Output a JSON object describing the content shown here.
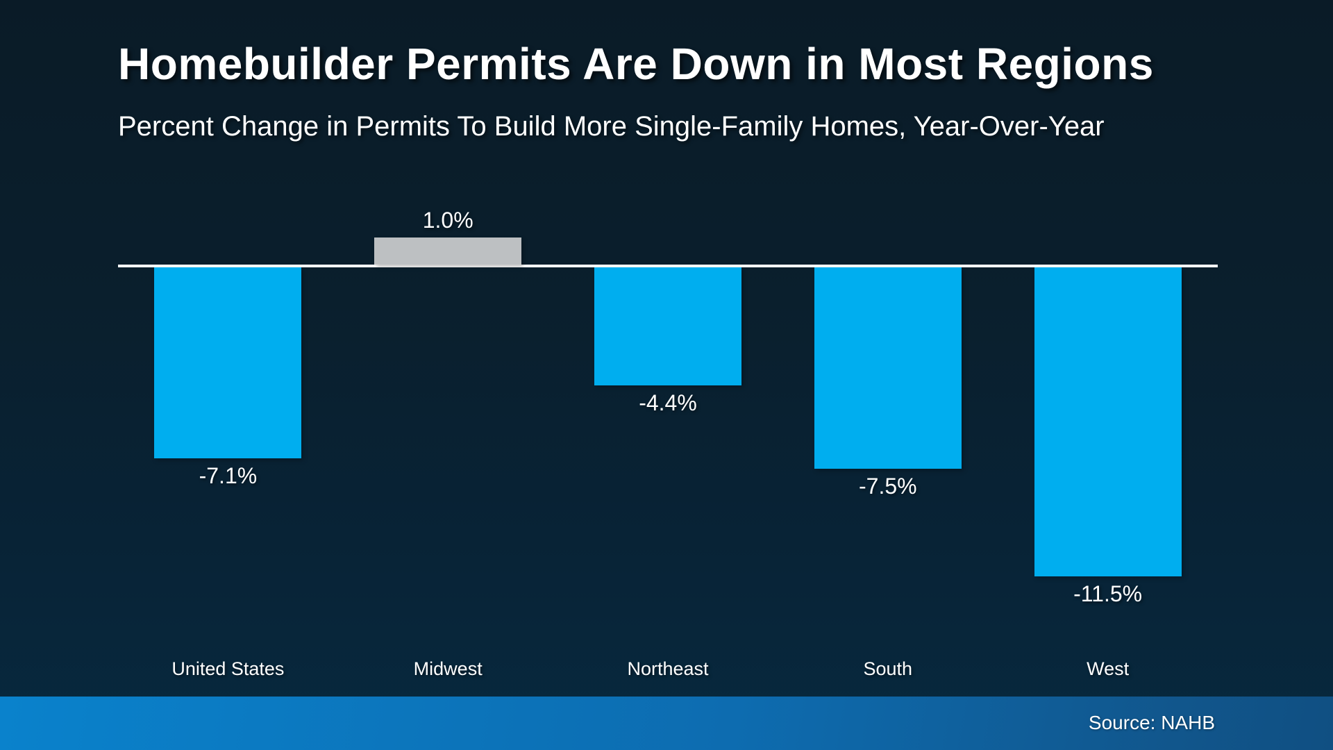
{
  "chart_data": {
    "type": "bar",
    "title": "Homebuilder Permits Are Down in Most Regions",
    "subtitle": "Percent Change in Permits To Build More Single-Family Homes, Year-Over-Year",
    "categories": [
      "United States",
      "Midwest",
      "Northeast",
      "South",
      "West"
    ],
    "values": [
      -7.1,
      1.0,
      -4.4,
      -7.5,
      -11.5
    ],
    "value_labels": [
      "-7.1%",
      "1.0%",
      "-4.4%",
      "-7.5%",
      "-11.5%"
    ],
    "colors": [
      "#00AEEF",
      "#BDC0C2",
      "#00AEEF",
      "#00AEEF",
      "#00AEEF"
    ],
    "baseline": 0,
    "ylim": [
      -12.5,
      2
    ],
    "grid": false,
    "legend": "none",
    "axis_line_color": "#FFFFFF",
    "value_label_position": "outside-end"
  },
  "footer": {
    "source_label": "Source: NAHB"
  },
  "colors": {
    "background_top": "#0a1b27",
    "background_bottom": "#07293f",
    "bar_negative": "#00AEEF",
    "bar_positive_neutral": "#BDC0C2",
    "footer_gradient_left": "#0a82cc",
    "footer_gradient_right": "#104f82",
    "text": "#FFFFFF"
  }
}
